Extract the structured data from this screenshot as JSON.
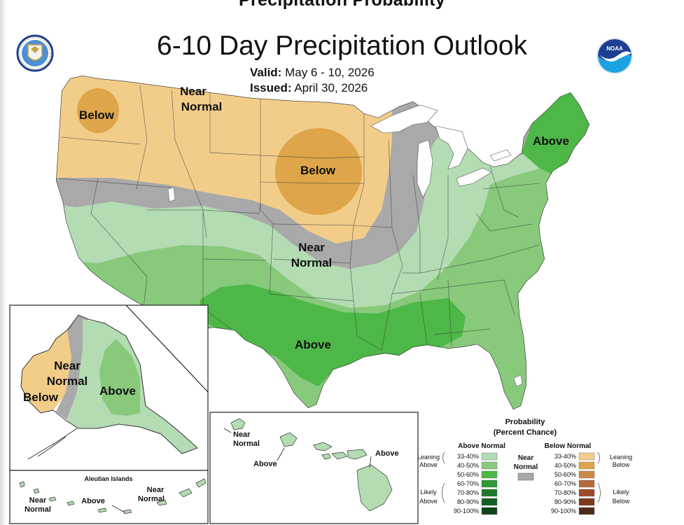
{
  "header": {
    "cutoff_title": "Precipitation Probability",
    "title": "6-10 Day Precipitation Outlook",
    "valid_label": "Valid:",
    "valid_value": "May 6 - 10, 2026",
    "issued_label": "Issued:",
    "issued_value": "April 30, 2026"
  },
  "logos": {
    "left": "doc-seal-icon",
    "right": "noaa-logo-icon"
  },
  "map_labels": {
    "conus": {
      "wa_below": "Below",
      "north_near_1": "Near",
      "north_near_2": "Normal",
      "plains_below": "Below",
      "mid_near_1": "Near",
      "mid_near_2": "Normal",
      "ne_above": "Above",
      "south_above": "Above"
    },
    "alaska": {
      "near_1": "Near",
      "near_2": "Normal",
      "below": "Below",
      "above": "Above"
    },
    "aleutians": {
      "title": "Aleutian Islands",
      "near_w_1": "Near",
      "near_w_2": "Normal",
      "above": "Above",
      "near_e_1": "Near",
      "near_e_2": "Normal"
    },
    "hawaii": {
      "near_1": "Near",
      "near_2": "Normal",
      "above_w": "Above",
      "above_e": "Above"
    }
  },
  "legend": {
    "title_1": "Probability",
    "title_2": "(Percent Chance)",
    "above_header": "Above Normal",
    "below_header": "Below Normal",
    "near_1": "Near",
    "near_2": "Normal",
    "leaning_above_1": "Leaning",
    "leaning_above_2": "Above",
    "likely_above_1": "Likely",
    "likely_above_2": "Above",
    "leaning_below_1": "Leaning",
    "leaning_below_2": "Below",
    "likely_below_1": "Likely",
    "likely_below_2": "Below",
    "ranges": [
      "33-40%",
      "40-50%",
      "50-60%",
      "60-70%",
      "70-80%",
      "80-90%",
      "90-100%"
    ],
    "above_colors": [
      "#b3dcb2",
      "#88c97c",
      "#4db847",
      "#2f9a36",
      "#1e7a2a",
      "#145f22",
      "#0d4418"
    ],
    "below_colors": [
      "#f2cd8a",
      "#dea54a",
      "#c98a48",
      "#b56a3a",
      "#9c4a2a",
      "#7a3a1a",
      "#4f2a18"
    ],
    "near_color": "#a9a9a9"
  }
}
